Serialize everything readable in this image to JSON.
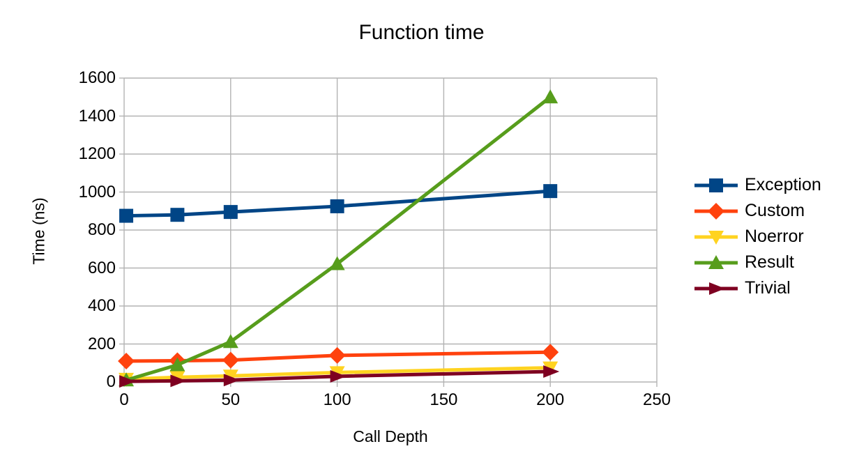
{
  "chart_data": {
    "type": "line",
    "title": "Function time",
    "xlabel": "Call Depth",
    "ylabel": "Time (ns)",
    "x": [
      1,
      25,
      50,
      100,
      200
    ],
    "xlim": [
      0,
      250
    ],
    "ylim": [
      0,
      1600
    ],
    "x_ticks": [
      0,
      50,
      100,
      150,
      200,
      250
    ],
    "y_ticks": [
      0,
      200,
      400,
      600,
      800,
      1000,
      1200,
      1400,
      1600
    ],
    "grid": true,
    "legend_position": "right",
    "series": [
      {
        "name": "Exception",
        "color": "#004586",
        "marker": "square",
        "values": [
          875,
          880,
          895,
          925,
          1005
        ]
      },
      {
        "name": "Custom",
        "color": "#FF420E",
        "marker": "diamond",
        "values": [
          110,
          112,
          115,
          140,
          157
        ]
      },
      {
        "name": "Noerror",
        "color": "#FFD320",
        "marker": "triangle-down",
        "values": [
          15,
          25,
          32,
          50,
          75
        ]
      },
      {
        "name": "Result",
        "color": "#579D1C",
        "marker": "triangle-up",
        "values": [
          10,
          90,
          212,
          622,
          1500
        ]
      },
      {
        "name": "Trivial",
        "color": "#7E0021",
        "marker": "arrow-right",
        "values": [
          3,
          6,
          10,
          30,
          55
        ]
      }
    ],
    "gridline_color": "#B3B3B3",
    "background_color": "#FFFFFF",
    "text_color": "#000000"
  }
}
